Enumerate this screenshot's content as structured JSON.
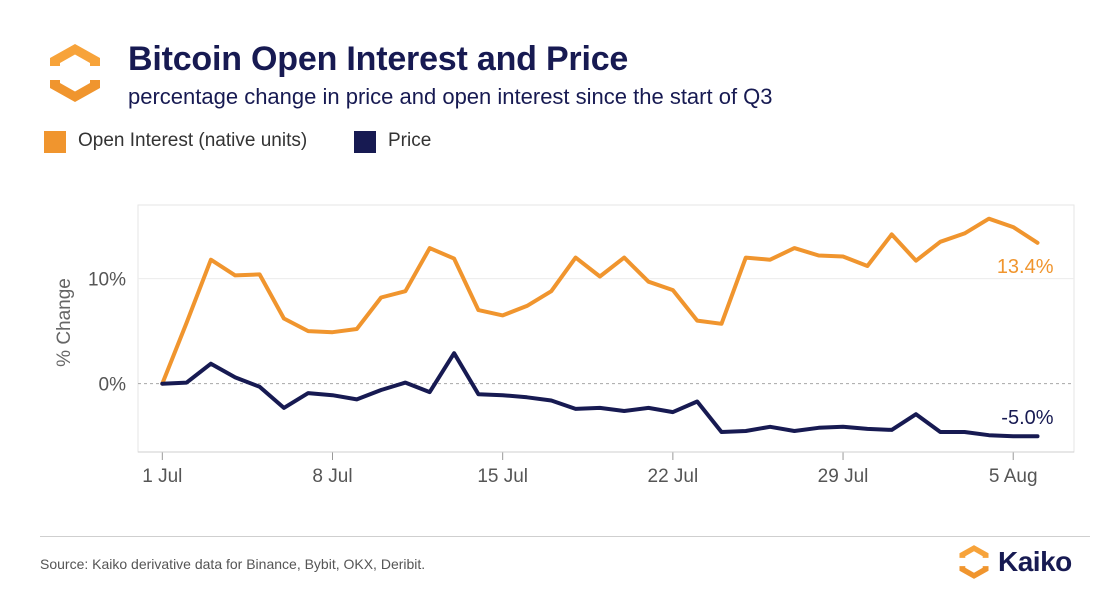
{
  "header": {
    "title": "Bitcoin Open Interest and Price",
    "subtitle": "percentage change in price and open interest since the start of Q3"
  },
  "footer": {
    "source": "Source: Kaiko derivative data for Binance, Bybit, OKX, Deribit.",
    "brand": "Kaiko"
  },
  "colors": {
    "open_interest": "#f0952e",
    "price": "#171a52",
    "title": "#171a52",
    "logo_orange": "#f7a33a"
  },
  "chart_data": {
    "type": "line",
    "ylabel": "% Change",
    "xlabel": "",
    "ylim": [
      -6.5,
      17
    ],
    "xlim": [
      -1,
      37.5
    ],
    "yticks": [
      {
        "value": 0,
        "label": "0%"
      },
      {
        "value": 10,
        "label": "10%"
      }
    ],
    "xticks": [
      {
        "day": 0,
        "label": "1 Jul"
      },
      {
        "day": 7,
        "label": "8 Jul"
      },
      {
        "day": 14,
        "label": "15 Jul"
      },
      {
        "day": 21,
        "label": "22 Jul"
      },
      {
        "day": 28,
        "label": "29 Jul"
      },
      {
        "day": 35,
        "label": "5 Aug"
      }
    ],
    "x": [
      "1 Jul",
      "2 Jul",
      "3 Jul",
      "4 Jul",
      "5 Jul",
      "6 Jul",
      "7 Jul",
      "8 Jul",
      "9 Jul",
      "10 Jul",
      "11 Jul",
      "12 Jul",
      "13 Jul",
      "14 Jul",
      "15 Jul",
      "16 Jul",
      "17 Jul",
      "18 Jul",
      "19 Jul",
      "20 Jul",
      "21 Jul",
      "22 Jul",
      "23 Jul",
      "24 Jul",
      "25 Jul",
      "26 Jul",
      "27 Jul",
      "28 Jul",
      "29 Jul",
      "30 Jul",
      "31 Jul",
      "1 Aug",
      "2 Aug",
      "3 Aug",
      "4 Aug",
      "5 Aug",
      "6 Aug"
    ],
    "series": [
      {
        "name": "Open Interest (native units)",
        "color": "#f0952e",
        "end_label": "13.4%",
        "values": [
          0.0,
          5.8,
          11.8,
          10.3,
          10.4,
          6.2,
          5.0,
          4.9,
          5.2,
          8.2,
          8.8,
          12.9,
          11.9,
          7.0,
          6.5,
          7.4,
          8.8,
          12.0,
          10.2,
          12.0,
          9.7,
          8.9,
          6.0,
          5.7,
          12.0,
          11.8,
          12.9,
          12.2,
          12.1,
          11.2,
          14.2,
          11.7,
          13.5,
          14.3,
          15.7,
          14.9,
          13.4
        ]
      },
      {
        "name": "Price",
        "color": "#171a52",
        "end_label": "-5.0%",
        "values": [
          0.0,
          0.1,
          1.9,
          0.6,
          -0.3,
          -2.3,
          -0.9,
          -1.1,
          -1.5,
          -0.6,
          0.1,
          -0.8,
          2.9,
          -1.0,
          -1.1,
          -1.3,
          -1.6,
          -2.4,
          -2.3,
          -2.6,
          -2.3,
          -2.7,
          -1.7,
          -4.6,
          -4.5,
          -4.1,
          -4.5,
          -4.2,
          -4.1,
          -4.3,
          -4.4,
          -2.9,
          -4.6,
          -4.6,
          -4.9,
          -5.0,
          -5.0
        ]
      }
    ],
    "grid": true,
    "zero_line": "dashed",
    "legend": "top-left"
  }
}
